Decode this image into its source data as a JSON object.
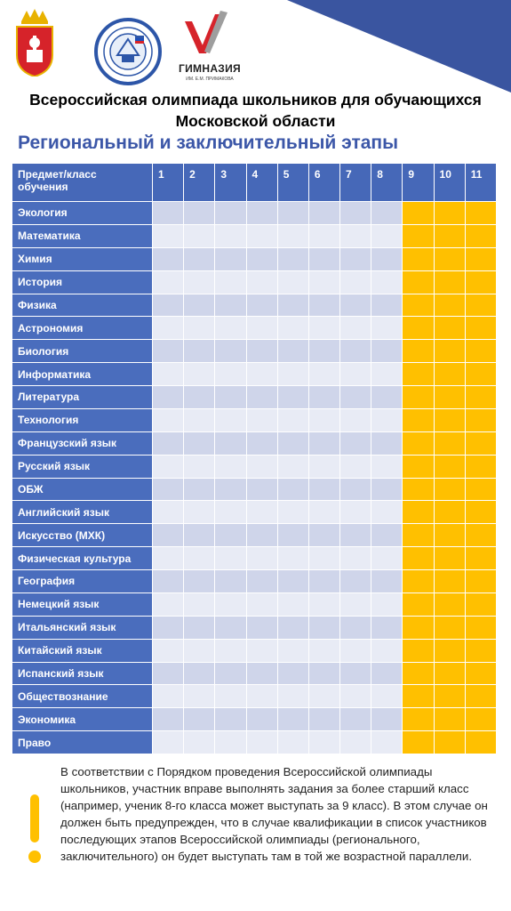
{
  "header": {
    "gymnasium_name": "ГИМНАЗИЯ",
    "gymnasium_subtitle": "ИМ. Е.М. ПРИМАКОВА",
    "title_line1": "Всероссийская олимпиада школьников для обучающихся",
    "title_line2": "Московской области",
    "subtitle": "Региональный и заключительный этапы"
  },
  "table": {
    "header_label": "Предмет/класс обучения",
    "grades": [
      "1",
      "2",
      "3",
      "4",
      "5",
      "6",
      "7",
      "8",
      "9",
      "10",
      "11"
    ],
    "highlighted_grades": [
      "9",
      "10",
      "11"
    ],
    "subjects": [
      "Экология",
      "Математика",
      "Химия",
      "История",
      "Физика",
      "Астрономия",
      "Биология",
      "Информатика",
      "Литература",
      "Технология",
      "Французский язык",
      "Русский язык",
      "ОБЖ",
      "Английский язык",
      "Искусство (МХК)",
      "Физическая культура",
      "География",
      "Немецкий язык",
      "Итальянский язык",
      "Китайский язык",
      "Испанский язык",
      "Обществознание",
      "Экономика",
      "Право"
    ]
  },
  "note": {
    "text": "В соответствии с Порядком проведения Всероссийской олимпиады школьников, участник вправе выполнять задания за более старший класс (например, ученик 8-го класса может выступать за 9 класс). В этом случае он должен быть предупрежден, что в случае квалификации в список участников последующих этапов Всероссийской олимпиады (регионального, заключительного) он будет выступать там в той же возрастной параллели."
  },
  "colors": {
    "header_blue": "#4668b8",
    "highlight_yellow": "#ffc000",
    "title_blue": "#3c57a8"
  },
  "icons": [
    "coat-of-arms-icon",
    "olympiad-emblem-icon",
    "gymnasium-checkmark-logo",
    "exclamation-icon"
  ]
}
